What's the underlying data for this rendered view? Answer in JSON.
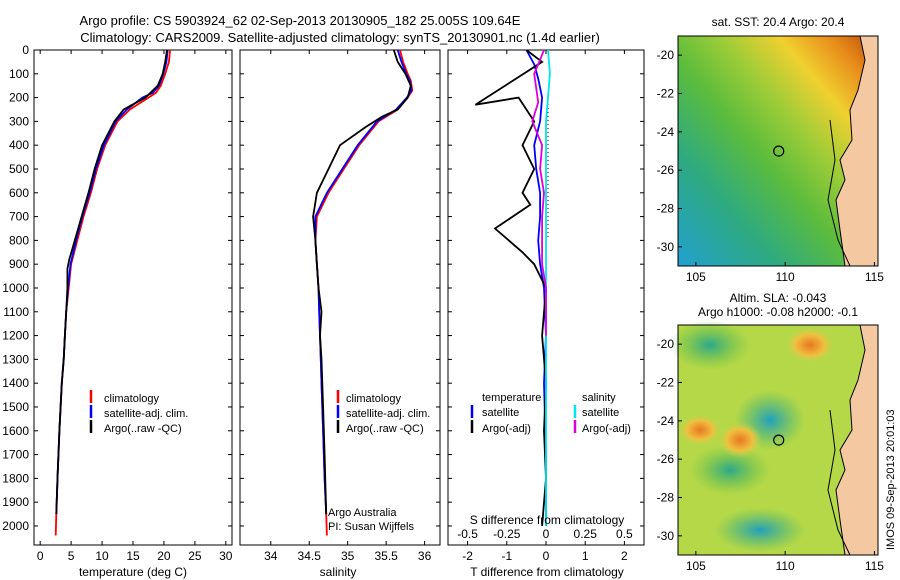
{
  "header": {
    "line1": "Argo profile: CS 5903924_62 02-Sep-2013 20130905_182 25.005S 109.64E",
    "line2": "Climatology: CARS2009. Satellite-adjusted climatology: synTS_20130901.nc (1.4d earlier)"
  },
  "colors": {
    "climatology": "#ff0000",
    "satellite": "#0000ff",
    "argo": "#000000",
    "salinity_satellite": "#00e5ee",
    "salinity_argo": "#dd00dd"
  },
  "chart_data": [
    {
      "type": "line",
      "xlabel": "temperature (deg C)",
      "ylabel": "",
      "xlim": [
        -1,
        31
      ],
      "ylim": [
        2080,
        0
      ],
      "xticks": [
        "0",
        "5",
        "10",
        "15",
        "20",
        "25",
        "30"
      ],
      "yticks": [
        "0",
        "100",
        "200",
        "300",
        "400",
        "500",
        "600",
        "700",
        "800",
        "900",
        "1000",
        "1100",
        "1200",
        "1300",
        "1400",
        "1500",
        "1600",
        "1700",
        "1800",
        "1900",
        "2000"
      ],
      "legend": [
        "climatology",
        "satellite-adj. clim.",
        "Argo(..raw -QC)"
      ],
      "legend_position": "lower-right",
      "series": [
        {
          "name": "climatology",
          "x": [
            21,
            20.8,
            20.2,
            19.5,
            18.7,
            17.5,
            14.5,
            12.5,
            10.5,
            9.2,
            8.2,
            7,
            6,
            5,
            4.6,
            4.2,
            4,
            3.8,
            3.5,
            3.1,
            2.8,
            2.6,
            2.5
          ],
          "y": [
            0,
            50,
            100,
            150,
            180,
            200,
            250,
            300,
            400,
            500,
            600,
            700,
            800,
            900,
            1000,
            1100,
            1200,
            1300,
            1400,
            1600,
            1800,
            1950,
            2040
          ]
        },
        {
          "name": "satellite-adj. clim.",
          "x": [
            20.6,
            20.4,
            19.9,
            19.2,
            18.2,
            16.5,
            14,
            12.2,
            10.3,
            9,
            8,
            6.8,
            5.8,
            4.9,
            4.5,
            4.2,
            4,
            3.8,
            3.5,
            3.1,
            2.8,
            2.6
          ],
          "y": [
            0,
            50,
            100,
            150,
            180,
            200,
            250,
            300,
            400,
            500,
            600,
            700,
            800,
            900,
            1000,
            1100,
            1200,
            1300,
            1400,
            1600,
            1800,
            1950
          ]
        },
        {
          "name": "Argo(..raw -QC)",
          "x": [
            20.5,
            20.2,
            19.8,
            19,
            17,
            13.5,
            12,
            10,
            8.8,
            7.8,
            6.7,
            5.6,
            4.7,
            4.4,
            4.4,
            4.2,
            4,
            3.8,
            3.5,
            3.1,
            2.8,
            2.6
          ],
          "y": [
            0,
            50,
            100,
            150,
            200,
            250,
            300,
            400,
            500,
            600,
            700,
            800,
            880,
            920,
            1000,
            1100,
            1200,
            1300,
            1400,
            1600,
            1800,
            1950
          ]
        }
      ]
    },
    {
      "type": "line",
      "xlabel": "salinity",
      "xlim": [
        33.6,
        36.2
      ],
      "ylim": [
        2080,
        0
      ],
      "xticks": [
        "34",
        "34.5",
        "35",
        "35.5",
        "36"
      ],
      "legend": [
        "climatology",
        "satellite-adj. clim.",
        "Argo(..raw -QC)"
      ],
      "legend_position": "lower-right",
      "annotations": [
        "Argo Australia",
        "PI: Susan Wijffels"
      ],
      "series": [
        {
          "name": "climatology",
          "x": [
            35.68,
            35.72,
            35.78,
            35.82,
            35.84,
            35.78,
            35.65,
            35.4,
            35.15,
            34.95,
            34.75,
            34.6,
            34.58,
            34.6,
            34.62,
            34.63,
            34.64,
            34.65,
            34.66,
            34.68,
            34.7,
            34.72,
            34.73
          ],
          "y": [
            0,
            50,
            100,
            130,
            170,
            200,
            250,
            300,
            400,
            500,
            600,
            700,
            800,
            900,
            1000,
            1100,
            1200,
            1300,
            1400,
            1600,
            1800,
            1950,
            2040
          ]
        },
        {
          "name": "satellite-adj. clim.",
          "x": [
            35.65,
            35.7,
            35.76,
            35.81,
            35.83,
            35.77,
            35.63,
            35.38,
            35.13,
            34.93,
            34.73,
            34.58,
            34.58,
            34.6,
            34.62,
            34.63,
            34.64,
            34.65,
            34.66,
            34.68,
            34.7,
            34.72
          ],
          "y": [
            0,
            50,
            100,
            130,
            170,
            200,
            250,
            300,
            400,
            500,
            600,
            700,
            800,
            900,
            1000,
            1100,
            1200,
            1300,
            1400,
            1600,
            1800,
            1950
          ]
        },
        {
          "name": "Argo(..raw -QC)",
          "x": [
            35.6,
            35.65,
            35.75,
            35.82,
            35.78,
            35.65,
            35.45,
            35.25,
            34.9,
            34.75,
            34.6,
            34.55,
            34.58,
            34.6,
            34.62,
            34.66,
            34.64,
            34.66,
            34.68,
            34.7,
            34.72
          ],
          "y": [
            0,
            50,
            100,
            150,
            200,
            250,
            280,
            320,
            400,
            500,
            600,
            700,
            800,
            900,
            1000,
            1100,
            1200,
            1300,
            1500,
            1700,
            1950
          ]
        }
      ]
    },
    {
      "type": "line",
      "xlabel": "T difference from climatology",
      "xlabel_top": "S difference from climatology",
      "xlim": [
        -2.5,
        2.5
      ],
      "ylim": [
        2080,
        0
      ],
      "xticks_bottom": [
        "-2",
        "-1",
        "0",
        "1",
        "2"
      ],
      "xticks_top": [
        "-0.5",
        "-0.25",
        "0",
        "0.25",
        "0.5"
      ],
      "legend_left_title": "temperature",
      "legend_left": [
        "satellite",
        "Argo(-adj)"
      ],
      "legend_right_title": "salinity",
      "legend_right": [
        "satellite",
        "Argo(-adj)"
      ],
      "series": [
        {
          "name": "temperature satellite",
          "x": [
            -0.5,
            -0.3,
            -0.2,
            -0.1,
            -0.15,
            -0.3,
            -0.25,
            -0.15,
            -0.15,
            -0.2,
            -0.15,
            -0.05,
            0,
            -0.05,
            0,
            0
          ],
          "y": [
            0,
            60,
            120,
            200,
            300,
            400,
            500,
            600,
            700,
            800,
            900,
            1000,
            1200,
            1400,
            1700,
            2000
          ]
        },
        {
          "name": "temperature Argo(-adj)",
          "x": [
            -0.5,
            -0.1,
            -1.8,
            -0.7,
            -0.3,
            -0.6,
            -0.3,
            -0.6,
            -0.4,
            -1.3,
            -0.6,
            -0.3,
            0,
            -0.1,
            0,
            -0.05,
            0,
            -0.1
          ],
          "y": [
            0,
            50,
            230,
            200,
            300,
            400,
            500,
            600,
            650,
            750,
            850,
            900,
            1000,
            1200,
            1400,
            1600,
            1800,
            2000
          ]
        },
        {
          "name": "salinity satellite",
          "x": [
            0.05,
            0.1,
            0.05,
            0,
            0,
            0,
            0,
            0,
            0,
            0,
            0,
            0,
            0
          ],
          "y": [
            0,
            100,
            200,
            300,
            400,
            500,
            600,
            800,
            1000,
            1200,
            1400,
            1700,
            2000
          ]
        },
        {
          "name": "salinity Argo(-adj)",
          "x": [
            -0.05,
            -0.2,
            -0.3,
            -0.2,
            -0.35,
            -0.1,
            -0.15,
            -0.05,
            -0.1,
            -0.1,
            -0.1,
            0,
            0
          ],
          "y": [
            0,
            60,
            100,
            220,
            300,
            400,
            500,
            600,
            700,
            800,
            900,
            1000,
            1200
          ]
        }
      ]
    },
    {
      "type": "heatmap",
      "title": "sat. SST: 20.4  Argo: 20.4",
      "xticks": [
        "105",
        "110",
        "115"
      ],
      "yticks": [
        "-20",
        "-22",
        "-24",
        "-26",
        "-28",
        "-30"
      ],
      "xlim": [
        104,
        115.2
      ],
      "ylim": [
        -31,
        -19
      ],
      "marker": {
        "lon": 109.64,
        "lat": -25.005
      }
    },
    {
      "type": "heatmap",
      "title": "Altim. SLA: -0.043",
      "subtitle": "Argo h1000: -0.08 h2000: -0.1",
      "xticks": [
        "105",
        "110",
        "115"
      ],
      "yticks": [
        "-20",
        "-22",
        "-24",
        "-26",
        "-28",
        "-30"
      ],
      "xlim": [
        104,
        115.2
      ],
      "ylim": [
        -31,
        -19
      ],
      "marker": {
        "lon": 109.64,
        "lat": -25.005
      }
    }
  ],
  "watermark": "IMOS 09-Sep-2013 20:01:03"
}
